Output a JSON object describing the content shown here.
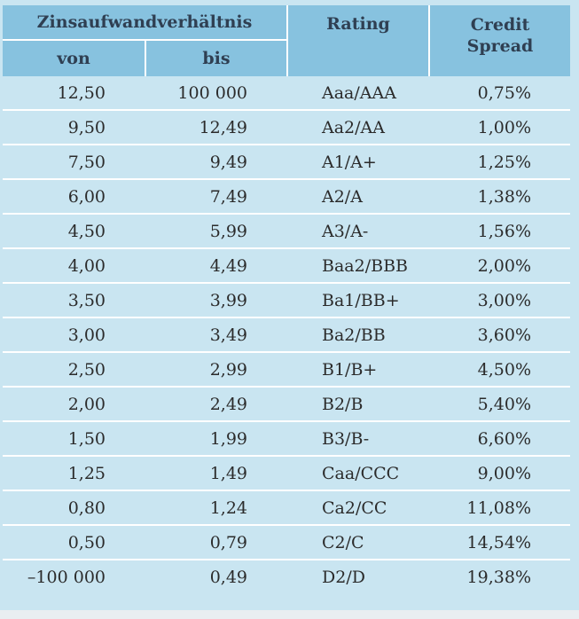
{
  "header": {
    "group_label": "Zinsaufwandverhältnis",
    "von_label": "von",
    "bis_label": "bis",
    "rating_label": "Rating",
    "spread_label_line1": "Credit",
    "spread_label_line2": "Spread"
  },
  "rows": [
    {
      "von": "12,50",
      "bis": "100 000",
      "rating": "Aaa/AAA",
      "spread": "0,75%"
    },
    {
      "von": "9,50",
      "bis": "12,49",
      "rating": "Aa2/AA",
      "spread": "1,00%"
    },
    {
      "von": "7,50",
      "bis": "9,49",
      "rating": "A1/A+",
      "spread": "1,25%"
    },
    {
      "von": "6,00",
      "bis": "7,49",
      "rating": "A2/A",
      "spread": "1,38%"
    },
    {
      "von": "4,50",
      "bis": "5,99",
      "rating": "A3/A-",
      "spread": "1,56%"
    },
    {
      "von": "4,00",
      "bis": "4,49",
      "rating": "Baa2/BBB",
      "spread": "2,00%"
    },
    {
      "von": "3,50",
      "bis": "3,99",
      "rating": "Ba1/BB+",
      "spread": "3,00%"
    },
    {
      "von": "3,00",
      "bis": "3,49",
      "rating": "Ba2/BB",
      "spread": "3,60%"
    },
    {
      "von": "2,50",
      "bis": "2,99",
      "rating": "B1/B+",
      "spread": "4,50%"
    },
    {
      "von": "2,00",
      "bis": "2,49",
      "rating": "B2/B",
      "spread": "5,40%"
    },
    {
      "von": "1,50",
      "bis": "1,99",
      "rating": "B3/B-",
      "spread": "6,60%"
    },
    {
      "von": "1,25",
      "bis": "1,49",
      "rating": "Caa/CCC",
      "spread": "9,00%"
    },
    {
      "von": "0,80",
      "bis": "1,24",
      "rating": "Ca2/CC",
      "spread": "11,08%"
    },
    {
      "von": "0,50",
      "bis": "0,79",
      "rating": "C2/C",
      "spread": "14,54%"
    },
    {
      "von": "–100 000",
      "bis": "0,49",
      "rating": "D2/D",
      "spread": "19,38%"
    }
  ],
  "colors": {
    "header_bg": "#87c2df",
    "body_bg": "#c9e5f1",
    "separator": "#ffffff"
  }
}
